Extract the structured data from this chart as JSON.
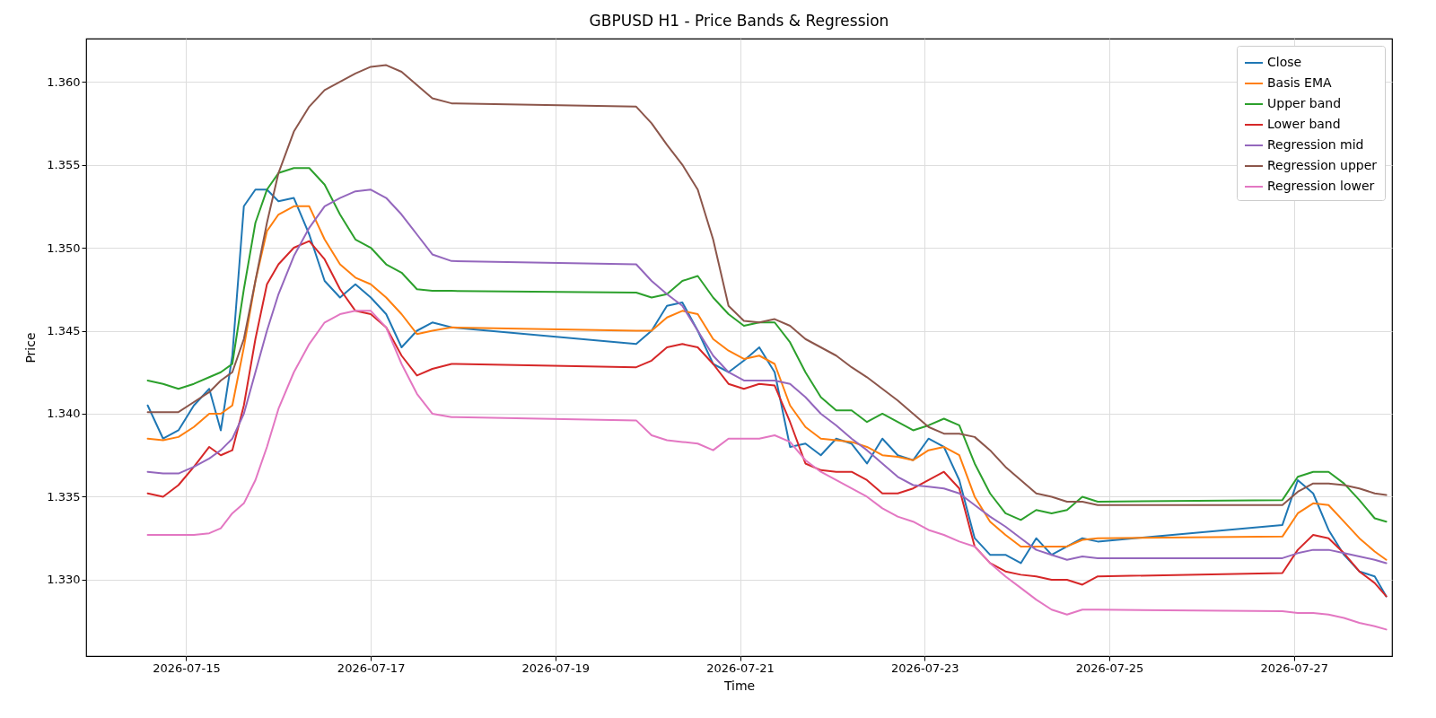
{
  "chart_data": {
    "type": "line",
    "title": "GBPUSD H1 - Price Bands & Regression",
    "xlabel": "Time",
    "ylabel": "Price",
    "x": [
      "2026-07-14T14:00",
      "2026-07-14T18:00",
      "2026-07-14T22:00",
      "2026-07-15T02:00",
      "2026-07-15T06:00",
      "2026-07-15T09:00",
      "2026-07-15T12:00",
      "2026-07-15T15:00",
      "2026-07-15T18:00",
      "2026-07-15T21:00",
      "2026-07-16T00:00",
      "2026-07-16T04:00",
      "2026-07-16T08:00",
      "2026-07-16T12:00",
      "2026-07-16T16:00",
      "2026-07-16T20:00",
      "2026-07-17T00:00",
      "2026-07-17T04:00",
      "2026-07-17T08:00",
      "2026-07-17T12:00",
      "2026-07-17T16:00",
      "2026-07-17T21:00",
      "2026-07-19T21:00",
      "2026-07-20T01:00",
      "2026-07-20T05:00",
      "2026-07-20T09:00",
      "2026-07-20T13:00",
      "2026-07-20T17:00",
      "2026-07-20T21:00",
      "2026-07-21T01:00",
      "2026-07-21T05:00",
      "2026-07-21T09:00",
      "2026-07-21T13:00",
      "2026-07-21T17:00",
      "2026-07-21T21:00",
      "2026-07-22T01:00",
      "2026-07-22T05:00",
      "2026-07-22T09:00",
      "2026-07-22T13:00",
      "2026-07-22T17:00",
      "2026-07-22T21:00",
      "2026-07-23T01:00",
      "2026-07-23T05:00",
      "2026-07-23T09:00",
      "2026-07-23T13:00",
      "2026-07-23T17:00",
      "2026-07-23T21:00",
      "2026-07-24T01:00",
      "2026-07-24T05:00",
      "2026-07-24T09:00",
      "2026-07-24T13:00",
      "2026-07-24T17:00",
      "2026-07-24T21:00",
      "2026-07-26T21:00",
      "2026-07-27T01:00",
      "2026-07-27T05:00",
      "2026-07-27T09:00",
      "2026-07-27T13:00",
      "2026-07-27T17:00",
      "2026-07-27T21:00",
      "2026-07-28T00:00"
    ],
    "series": [
      {
        "name": "Close",
        "color": "#1f77b4",
        "values": [
          1.3405,
          1.3385,
          1.339,
          1.3405,
          1.3415,
          1.339,
          1.3435,
          1.3525,
          1.3535,
          1.3535,
          1.3528,
          1.353,
          1.3508,
          1.348,
          1.347,
          1.3478,
          1.347,
          1.346,
          1.344,
          1.345,
          1.3455,
          1.3452,
          1.3442,
          1.345,
          1.3465,
          1.3467,
          1.345,
          1.343,
          1.3425,
          1.3432,
          1.344,
          1.3425,
          1.338,
          1.3382,
          1.3375,
          1.3385,
          1.3382,
          1.337,
          1.3385,
          1.3375,
          1.3372,
          1.3385,
          1.338,
          1.336,
          1.3325,
          1.3315,
          1.3315,
          1.331,
          1.3325,
          1.3315,
          1.332,
          1.3325,
          1.3323,
          1.3333,
          1.336,
          1.3352,
          1.333,
          1.3315,
          1.3305,
          1.3302,
          1.329
        ]
      },
      {
        "name": "Basis EMA",
        "color": "#ff7f0e",
        "values": [
          1.3385,
          1.3384,
          1.3386,
          1.3392,
          1.34,
          1.34,
          1.3405,
          1.344,
          1.348,
          1.351,
          1.352,
          1.3525,
          1.3525,
          1.3505,
          1.349,
          1.3482,
          1.3478,
          1.347,
          1.346,
          1.3448,
          1.345,
          1.3452,
          1.345,
          1.345,
          1.3458,
          1.3462,
          1.346,
          1.3445,
          1.3438,
          1.3433,
          1.3435,
          1.343,
          1.3405,
          1.3392,
          1.3385,
          1.3384,
          1.3383,
          1.338,
          1.3375,
          1.3374,
          1.3372,
          1.3378,
          1.338,
          1.3375,
          1.335,
          1.3335,
          1.3327,
          1.332,
          1.332,
          1.332,
          1.332,
          1.3324,
          1.3325,
          1.3326,
          1.334,
          1.3346,
          1.3345,
          1.3335,
          1.3325,
          1.3317,
          1.3312
        ]
      },
      {
        "name": "Upper band",
        "color": "#2ca02c",
        "values": [
          1.342,
          1.3418,
          1.3415,
          1.3418,
          1.3422,
          1.3425,
          1.343,
          1.3475,
          1.3515,
          1.3535,
          1.3545,
          1.3548,
          1.3548,
          1.3538,
          1.352,
          1.3505,
          1.35,
          1.349,
          1.3485,
          1.3475,
          1.3474,
          1.3474,
          1.3473,
          1.347,
          1.3472,
          1.348,
          1.3483,
          1.347,
          1.346,
          1.3453,
          1.3455,
          1.3455,
          1.3443,
          1.3425,
          1.341,
          1.3402,
          1.3402,
          1.3395,
          1.34,
          1.3395,
          1.339,
          1.3393,
          1.3397,
          1.3393,
          1.337,
          1.3352,
          1.334,
          1.3336,
          1.3342,
          1.334,
          1.3342,
          1.335,
          1.3347,
          1.3348,
          1.3362,
          1.3365,
          1.3365,
          1.3358,
          1.3348,
          1.3337,
          1.3335
        ]
      },
      {
        "name": "Lower band",
        "color": "#d62728",
        "values": [
          1.3352,
          1.335,
          1.3357,
          1.3368,
          1.338,
          1.3375,
          1.3378,
          1.3405,
          1.3445,
          1.3478,
          1.349,
          1.35,
          1.3504,
          1.3493,
          1.3475,
          1.3462,
          1.346,
          1.3452,
          1.3435,
          1.3423,
          1.3427,
          1.343,
          1.3428,
          1.3432,
          1.344,
          1.3442,
          1.344,
          1.343,
          1.3418,
          1.3415,
          1.3418,
          1.3417,
          1.3395,
          1.337,
          1.3366,
          1.3365,
          1.3365,
          1.336,
          1.3352,
          1.3352,
          1.3355,
          1.336,
          1.3365,
          1.3355,
          1.332,
          1.331,
          1.3305,
          1.3303,
          1.3302,
          1.33,
          1.33,
          1.3297,
          1.3302,
          1.3304,
          1.3318,
          1.3327,
          1.3325,
          1.3316,
          1.3305,
          1.3298,
          1.329
        ]
      },
      {
        "name": "Regression mid",
        "color": "#9467bd",
        "values": [
          1.3365,
          1.3364,
          1.3364,
          1.3368,
          1.3373,
          1.3378,
          1.3385,
          1.34,
          1.3425,
          1.345,
          1.3472,
          1.3495,
          1.3512,
          1.3525,
          1.353,
          1.3534,
          1.3535,
          1.353,
          1.352,
          1.3508,
          1.3496,
          1.3492,
          1.349,
          1.348,
          1.3472,
          1.3465,
          1.345,
          1.3435,
          1.3425,
          1.342,
          1.342,
          1.342,
          1.3418,
          1.341,
          1.34,
          1.3393,
          1.3385,
          1.3378,
          1.337,
          1.3362,
          1.3357,
          1.3356,
          1.3355,
          1.3352,
          1.3345,
          1.3338,
          1.3332,
          1.3325,
          1.3318,
          1.3315,
          1.3312,
          1.3314,
          1.3313,
          1.3313,
          1.3316,
          1.3318,
          1.3318,
          1.3316,
          1.3314,
          1.3312,
          1.331
        ]
      },
      {
        "name": "Regression upper",
        "color": "#8c564b",
        "values": [
          1.3401,
          1.3401,
          1.3401,
          1.3407,
          1.3413,
          1.342,
          1.3425,
          1.3445,
          1.348,
          1.3515,
          1.3545,
          1.357,
          1.3585,
          1.3595,
          1.36,
          1.3605,
          1.3609,
          1.361,
          1.3606,
          1.3598,
          1.359,
          1.3587,
          1.3585,
          1.3575,
          1.3562,
          1.355,
          1.3535,
          1.3505,
          1.3465,
          1.3456,
          1.3455,
          1.3457,
          1.3453,
          1.3445,
          1.344,
          1.3435,
          1.3428,
          1.3422,
          1.3415,
          1.3408,
          1.34,
          1.3392,
          1.3388,
          1.3388,
          1.3386,
          1.3378,
          1.3368,
          1.336,
          1.3352,
          1.335,
          1.3347,
          1.3347,
          1.3345,
          1.3345,
          1.3353,
          1.3358,
          1.3358,
          1.3357,
          1.3355,
          1.3352,
          1.3351
        ]
      },
      {
        "name": "Regression lower",
        "color": "#e377c2",
        "values": [
          1.3327,
          1.3327,
          1.3327,
          1.3327,
          1.3328,
          1.3331,
          1.334,
          1.3346,
          1.336,
          1.338,
          1.3403,
          1.3425,
          1.3442,
          1.3455,
          1.346,
          1.3462,
          1.3462,
          1.3452,
          1.343,
          1.3412,
          1.34,
          1.3398,
          1.3396,
          1.3387,
          1.3384,
          1.3383,
          1.3382,
          1.3378,
          1.3385,
          1.3385,
          1.3385,
          1.3387,
          1.3383,
          1.3372,
          1.3365,
          1.336,
          1.3355,
          1.335,
          1.3343,
          1.3338,
          1.3335,
          1.333,
          1.3327,
          1.3323,
          1.332,
          1.331,
          1.3302,
          1.3295,
          1.3288,
          1.3282,
          1.3279,
          1.3282,
          1.3282,
          1.3281,
          1.328,
          1.328,
          1.3279,
          1.3277,
          1.3274,
          1.3272,
          1.327
        ]
      }
    ],
    "xlim": [
      "2026-07-13T22:00",
      "2026-07-28T01:30"
    ],
    "xticks": [
      "2026-07-15",
      "2026-07-17",
      "2026-07-19",
      "2026-07-21",
      "2026-07-23",
      "2026-07-25",
      "2026-07-27"
    ],
    "ylim": [
      1.3254,
      1.3626
    ],
    "yticks": [
      {
        "value": 1.33,
        "label": "1.330"
      },
      {
        "value": 1.335,
        "label": "1.335"
      },
      {
        "value": 1.34,
        "label": "1.340"
      },
      {
        "value": 1.345,
        "label": "1.345"
      },
      {
        "value": 1.35,
        "label": "1.350"
      },
      {
        "value": 1.355,
        "label": "1.355"
      },
      {
        "value": 1.36,
        "label": "1.360"
      }
    ],
    "grid": true,
    "legend": "top right",
    "line_style": "solid"
  }
}
